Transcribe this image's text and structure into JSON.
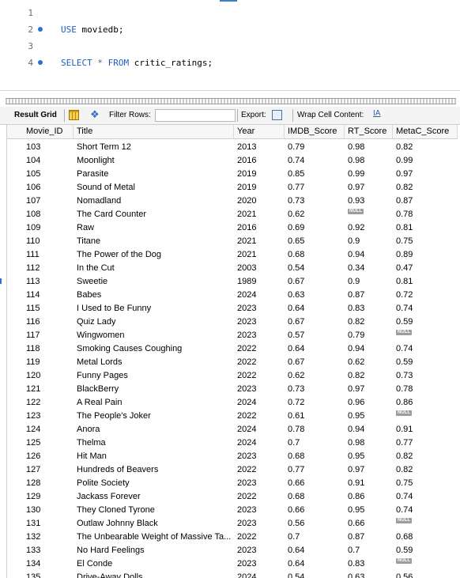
{
  "editor": {
    "lines": [
      {
        "num": "1",
        "dot": false,
        "parts": []
      },
      {
        "num": "2",
        "dot": true,
        "parts": [
          {
            "t": "USE",
            "c": "kw"
          },
          {
            "t": " moviedb;",
            "c": ""
          }
        ]
      },
      {
        "num": "3",
        "dot": false,
        "parts": []
      },
      {
        "num": "4",
        "dot": true,
        "parts": [
          {
            "t": "SELECT",
            "c": "kw"
          },
          {
            "t": " * ",
            "c": "gray"
          },
          {
            "t": "FROM",
            "c": "kw"
          },
          {
            "t": " critic_ratings;",
            "c": ""
          }
        ]
      }
    ]
  },
  "toolbar": {
    "result_grid": "Result Grid",
    "filter_rows": "Filter Rows:",
    "export": "Export:",
    "wrap": "Wrap Cell Content:",
    "wrap_glyph": "IA"
  },
  "null_label": "NULL",
  "grid": {
    "columns": [
      "Movie_ID",
      "Title",
      "Year",
      "IMDB_Score",
      "RT_Score",
      "MetaC_Score"
    ],
    "rows": [
      [
        "103",
        "Short Term 12",
        "2013",
        "0.79",
        "0.98",
        "0.82"
      ],
      [
        "104",
        "Moonlight",
        "2016",
        "0.74",
        "0.98",
        "0.99"
      ],
      [
        "105",
        "Parasite",
        "2019",
        "0.85",
        "0.99",
        "0.97"
      ],
      [
        "106",
        "Sound of Metal",
        "2019",
        "0.77",
        "0.97",
        "0.82"
      ],
      [
        "107",
        "Nomadland",
        "2020",
        "0.73",
        "0.93",
        "0.87"
      ],
      [
        "108",
        "The Card Counter",
        "2021",
        "0.62",
        null,
        "0.78"
      ],
      [
        "109",
        "Raw",
        "2016",
        "0.69",
        "0.92",
        "0.81"
      ],
      [
        "110",
        "Titane",
        "2021",
        "0.65",
        "0.9",
        "0.75"
      ],
      [
        "111",
        "The Power of the Dog",
        "2021",
        "0.68",
        "0.94",
        "0.89"
      ],
      [
        "112",
        "In the Cut",
        "2003",
        "0.54",
        "0.34",
        "0.47"
      ],
      [
        "113",
        "Sweetie",
        "1989",
        "0.67",
        "0.9",
        "0.81"
      ],
      [
        "114",
        "Babes",
        "2024",
        "0.63",
        "0.87",
        "0.72"
      ],
      [
        "115",
        "I Used to Be Funny",
        "2023",
        "0.64",
        "0.83",
        "0.74"
      ],
      [
        "116",
        "Quiz Lady",
        "2023",
        "0.67",
        "0.82",
        "0.59"
      ],
      [
        "117",
        "Wingwomen",
        "2023",
        "0.57",
        "0.79",
        null
      ],
      [
        "118",
        "Smoking Causes Coughing",
        "2022",
        "0.64",
        "0.94",
        "0.74"
      ],
      [
        "119",
        "Metal Lords",
        "2022",
        "0.67",
        "0.62",
        "0.59"
      ],
      [
        "120",
        "Funny Pages",
        "2022",
        "0.62",
        "0.82",
        "0.73"
      ],
      [
        "121",
        "BlackBerry",
        "2023",
        "0.73",
        "0.97",
        "0.78"
      ],
      [
        "122",
        "A Real Pain",
        "2024",
        "0.72",
        "0.96",
        "0.86"
      ],
      [
        "123",
        "The People's Joker",
        "2022",
        "0.61",
        "0.95",
        null
      ],
      [
        "124",
        "Anora",
        "2024",
        "0.78",
        "0.94",
        "0.91"
      ],
      [
        "125",
        "Thelma",
        "2024",
        "0.7",
        "0.98",
        "0.77"
      ],
      [
        "126",
        "Hit Man",
        "2023",
        "0.68",
        "0.95",
        "0.82"
      ],
      [
        "127",
        "Hundreds of Beavers",
        "2022",
        "0.77",
        "0.97",
        "0.82"
      ],
      [
        "128",
        "Polite Society",
        "2023",
        "0.66",
        "0.91",
        "0.75"
      ],
      [
        "129",
        "Jackass Forever",
        "2022",
        "0.68",
        "0.86",
        "0.74"
      ],
      [
        "130",
        "They Cloned Tyrone",
        "2023",
        "0.66",
        "0.95",
        "0.74"
      ],
      [
        "131",
        "Outlaw Johnny Black",
        "2023",
        "0.56",
        "0.66",
        null
      ],
      [
        "132",
        "The Unbearable Weight of Massive Ta...",
        "2022",
        "0.7",
        "0.87",
        "0.68"
      ],
      [
        "133",
        "No Hard Feelings",
        "2023",
        "0.64",
        "0.7",
        "0.59"
      ],
      [
        "134",
        "El Conde",
        "2023",
        "0.64",
        "0.83",
        null
      ],
      [
        "135",
        "Drive-Away Dolls",
        "2024",
        "0.54",
        "0.63",
        "0.56"
      ]
    ]
  }
}
